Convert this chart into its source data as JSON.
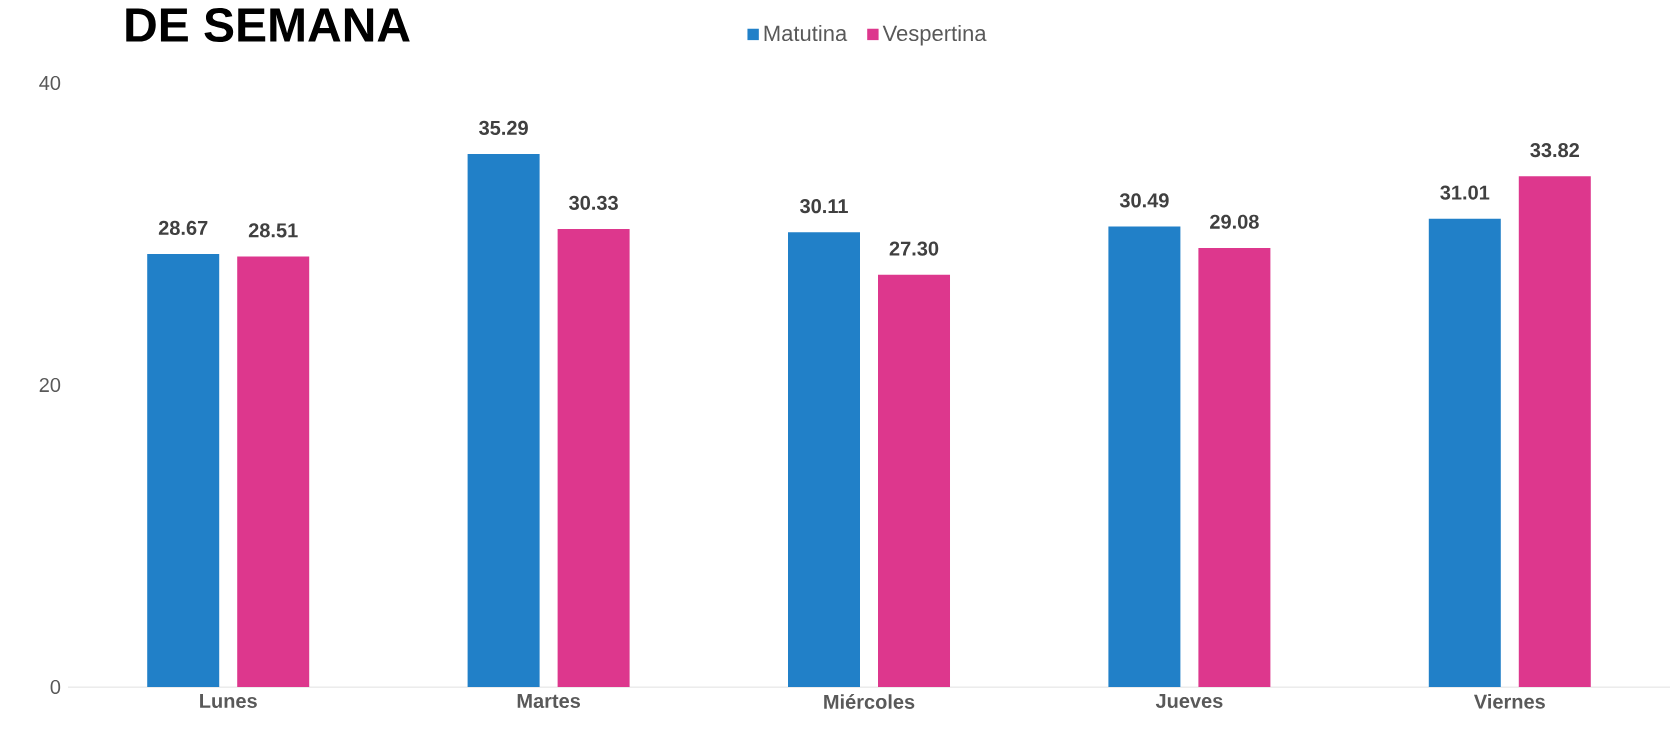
{
  "chart_data": {
    "type": "bar",
    "title": "DE SEMANA",
    "categories": [
      "Lunes",
      "Martes",
      "Miércoles",
      "Jueves",
      "Viernes"
    ],
    "series": [
      {
        "name": "Matutina",
        "color": "#2180c8",
        "values": [
          28.67,
          35.29,
          30.11,
          30.49,
          31.01
        ],
        "value_labels": [
          "28.67",
          "35.29",
          "30.11",
          "30.49",
          "31.01"
        ]
      },
      {
        "name": "Vespertina",
        "color": "#dd378d",
        "values": [
          28.51,
          30.33,
          27.3,
          29.08,
          33.82
        ],
        "value_labels": [
          "28.51",
          "30.33",
          "27.30",
          "29.08",
          "33.82"
        ]
      }
    ],
    "ylim": [
      0,
      40
    ],
    "yticks": [
      0,
      20,
      40
    ],
    "legend": "top",
    "grid": false
  }
}
